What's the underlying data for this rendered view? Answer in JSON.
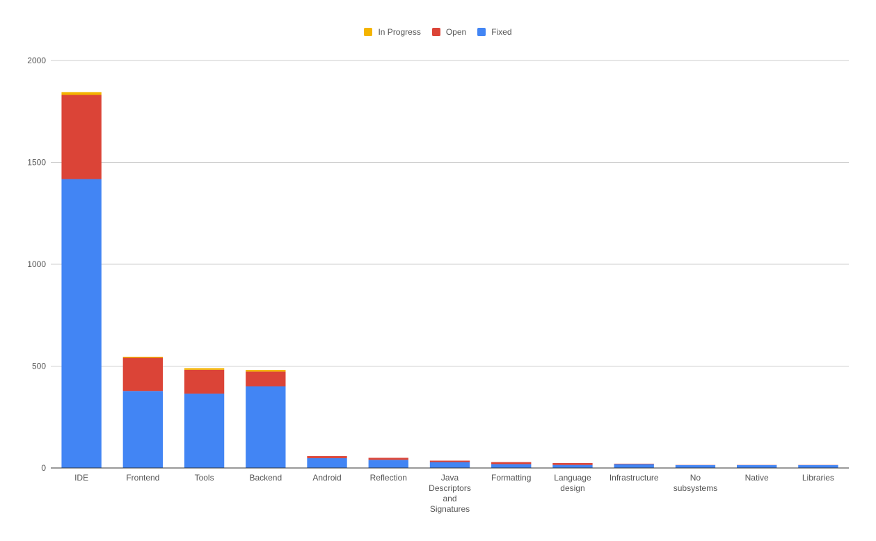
{
  "chart_data": {
    "type": "bar",
    "stacked": true,
    "categories": [
      "IDE",
      "Frontend",
      "Tools",
      "Backend",
      "Android",
      "Reflection",
      "Java Descriptors and Signatures",
      "Formatting",
      "Language design",
      "Infrastructure",
      "No subsystems",
      "Native",
      "Libraries"
    ],
    "category_label_lines": [
      [
        "IDE"
      ],
      [
        "Frontend"
      ],
      [
        "Tools"
      ],
      [
        "Backend"
      ],
      [
        "Android"
      ],
      [
        "Reflection"
      ],
      [
        "Java",
        "Descriptors",
        "and",
        "Signatures"
      ],
      [
        "Formatting"
      ],
      [
        "Language",
        "design"
      ],
      [
        "Infrastructure"
      ],
      [
        "No",
        "subsystems"
      ],
      [
        "Native"
      ],
      [
        "Libraries"
      ]
    ],
    "series": [
      {
        "name": "Fixed",
        "color": "#4285f4",
        "values": [
          1418,
          378,
          365,
          401,
          48,
          40,
          29,
          19,
          15,
          19,
          14,
          14,
          14
        ]
      },
      {
        "name": "Open",
        "color": "#db4437",
        "values": [
          413,
          163,
          117,
          72,
          10,
          10,
          7,
          10,
          9,
          2,
          1,
          1,
          1
        ]
      },
      {
        "name": "In Progress",
        "color": "#f4b400",
        "values": [
          14,
          5,
          8,
          8,
          0,
          0,
          0,
          0,
          0,
          0,
          0,
          0,
          0
        ]
      }
    ],
    "legend_order": [
      "In Progress",
      "Open",
      "Fixed"
    ],
    "legend_position": "top-center",
    "ylim": [
      0,
      2000
    ],
    "yticks": [
      0,
      500,
      1000,
      1500,
      2000
    ],
    "grid": true,
    "title": "",
    "xlabel": "",
    "ylabel": ""
  }
}
